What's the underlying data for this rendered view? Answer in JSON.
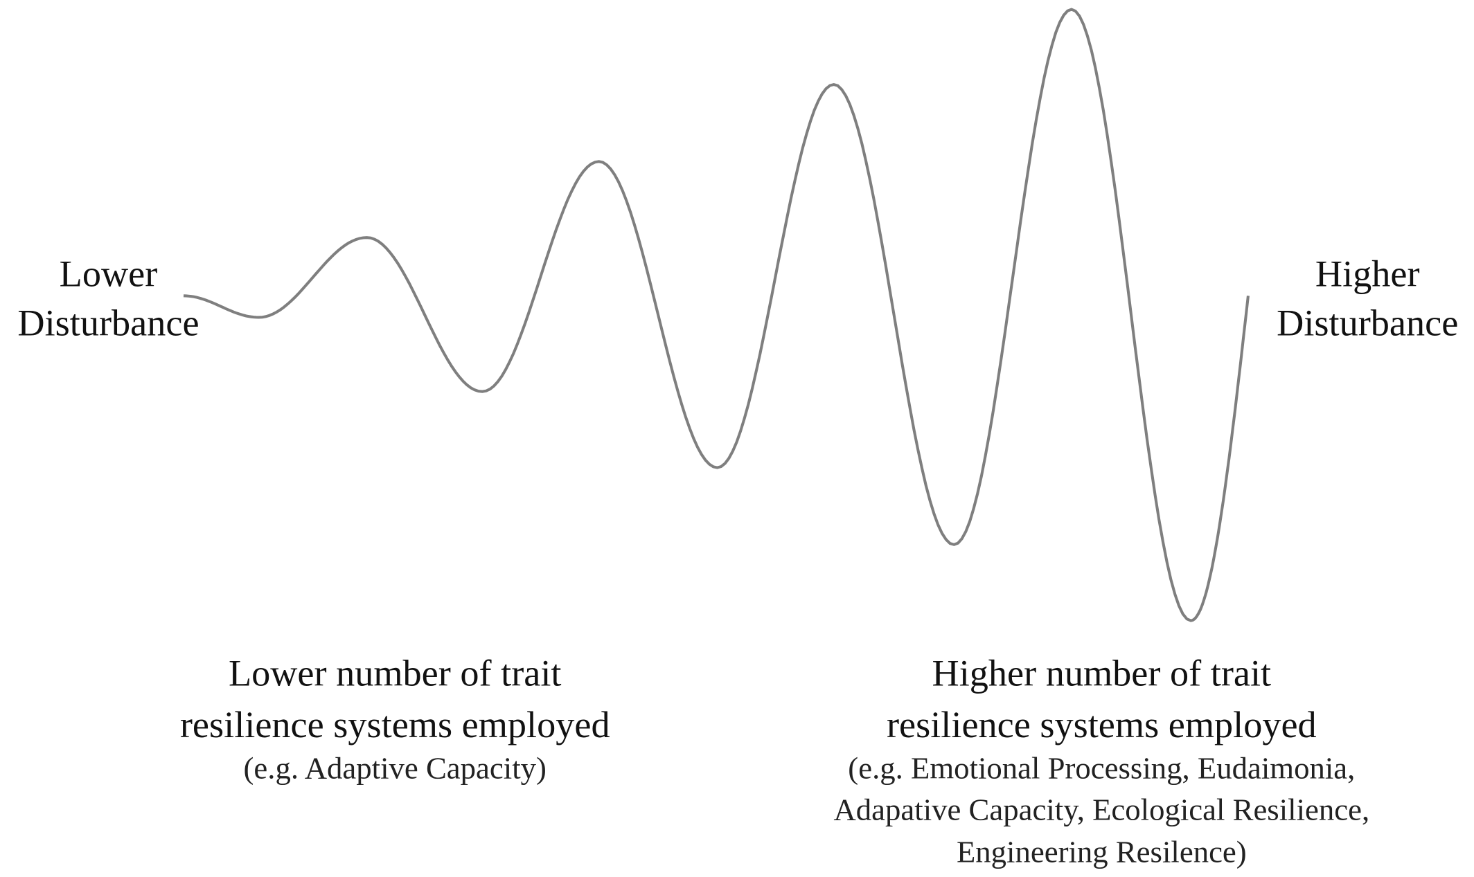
{
  "left_label": [
    "Lower",
    "Disturbance"
  ],
  "right_label": [
    "Higher",
    "Disturbance"
  ],
  "left_caption": {
    "lines": [
      "Lower number of trait",
      "resilience systems employed"
    ],
    "example": [
      "(e.g. Adaptive Capacity)"
    ]
  },
  "right_caption": {
    "lines": [
      "Higher number of trait",
      "resilience systems employed"
    ],
    "example": [
      "(e.g. Emotional Processing, Eudaimonia,",
      "Adapative Capacity, Ecological Resilience,",
      "Engineering Resilence)"
    ]
  }
}
